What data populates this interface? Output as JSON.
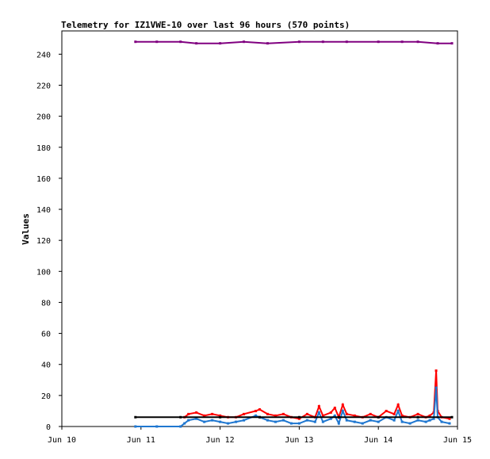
{
  "chart_data": {
    "type": "line",
    "title": "Telemetry for IZ1VWE-10 over last 96 hours (570 points)",
    "xlabel": "",
    "ylabel": "Values",
    "x_range": [
      "Jun 10",
      "Jun 15"
    ],
    "x_ticks": [
      "Jun 10",
      "Jun 11",
      "Jun 12",
      "Jun 13",
      "Jun 14",
      "Jun 15"
    ],
    "ylim": [
      0,
      255
    ],
    "y_ticks": [
      0,
      20,
      40,
      60,
      80,
      100,
      120,
      140,
      160,
      180,
      200,
      220,
      240
    ],
    "grid": false,
    "legend": "none",
    "series": [
      {
        "color": "#800080",
        "style": "line",
        "x": [
          0.93,
          1.2,
          1.5,
          1.7,
          2.0,
          2.3,
          2.6,
          3.0,
          3.3,
          3.6,
          4.0,
          4.3,
          4.5,
          4.75,
          4.93
        ],
        "values": [
          248,
          248,
          248,
          247,
          247,
          248,
          247,
          248,
          248,
          248,
          248,
          248,
          248,
          247,
          247
        ]
      },
      {
        "color": "#ff0000",
        "style": "line",
        "x": [
          1.55,
          1.6,
          1.7,
          1.8,
          1.9,
          2.0,
          2.1,
          2.2,
          2.3,
          2.45,
          2.5,
          2.6,
          2.7,
          2.8,
          2.9,
          3.0,
          3.1,
          3.2,
          3.25,
          3.3,
          3.4,
          3.45,
          3.5,
          3.55,
          3.6,
          3.7,
          3.8,
          3.9,
          4.0,
          4.1,
          4.2,
          4.25,
          4.3,
          4.4,
          4.5,
          4.6,
          4.65,
          4.7,
          4.73,
          4.75,
          4.8,
          4.9
        ],
        "values": [
          6,
          8,
          9,
          7,
          8,
          7,
          6,
          6,
          8,
          10,
          11,
          8,
          7,
          8,
          6,
          5,
          8,
          6,
          13,
          7,
          9,
          12,
          6,
          14,
          8,
          7,
          6,
          8,
          6,
          10,
          8,
          14,
          7,
          6,
          8,
          6,
          7,
          9,
          36,
          10,
          6,
          5
        ]
      },
      {
        "color": "#1f77d0",
        "style": "line",
        "x": [
          0.93,
          1.2,
          1.5,
          1.55,
          1.6,
          1.7,
          1.8,
          1.9,
          2.0,
          2.1,
          2.2,
          2.3,
          2.45,
          2.5,
          2.6,
          2.7,
          2.8,
          2.9,
          3.0,
          3.1,
          3.2,
          3.25,
          3.3,
          3.4,
          3.45,
          3.5,
          3.55,
          3.6,
          3.7,
          3.8,
          3.9,
          4.0,
          4.1,
          4.2,
          4.25,
          4.3,
          4.4,
          4.5,
          4.6,
          4.65,
          4.7,
          4.73,
          4.75,
          4.8,
          4.9
        ],
        "values": [
          0,
          0,
          0,
          2,
          4,
          5,
          3,
          4,
          3,
          2,
          3,
          4,
          7,
          6,
          4,
          3,
          4,
          2,
          2,
          4,
          3,
          9,
          3,
          5,
          7,
          2,
          10,
          4,
          3,
          2,
          4,
          3,
          6,
          4,
          10,
          3,
          2,
          4,
          3,
          4,
          5,
          25,
          6,
          3,
          2
        ]
      },
      {
        "color": "#000000",
        "style": "step",
        "x": [
          0.93,
          1.5,
          2.0,
          2.5,
          3.0,
          3.5,
          4.0,
          4.5,
          4.93
        ],
        "values": [
          6,
          6,
          6,
          6,
          6,
          6,
          6,
          6,
          6
        ]
      }
    ]
  }
}
